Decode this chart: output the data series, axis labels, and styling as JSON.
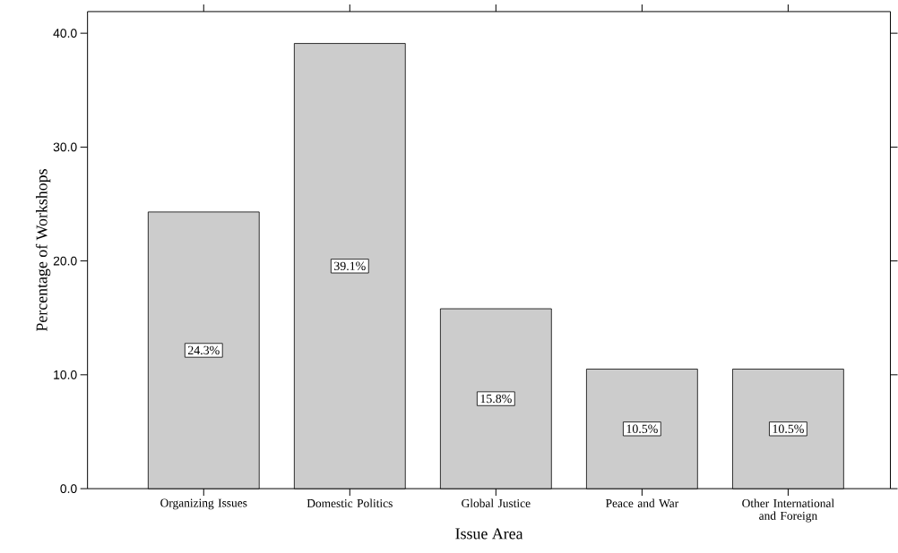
{
  "chart_data": {
    "type": "bar",
    "xlabel": "Issue Area",
    "ylabel": "Percentage of Workshops",
    "categories": [
      "Organizing Issues",
      "Domestic Politics",
      "Global Justice",
      "Peace and War",
      "Other International and Foreign"
    ],
    "values": [
      24.3,
      39.1,
      15.8,
      10.5,
      10.5
    ],
    "value_labels": [
      "24.3%",
      "39.1%",
      "15.8%",
      "10.5%",
      "10.5%"
    ],
    "color": "#cccccc",
    "ylim": [
      0,
      41.9
    ],
    "yticks": [
      {
        "value": 0,
        "label": "0.0"
      },
      {
        "value": 10,
        "label": "10.0"
      },
      {
        "value": 20,
        "label": "20.0"
      },
      {
        "value": 30,
        "label": "30.0"
      },
      {
        "value": 40,
        "label": "40.0"
      }
    ]
  }
}
